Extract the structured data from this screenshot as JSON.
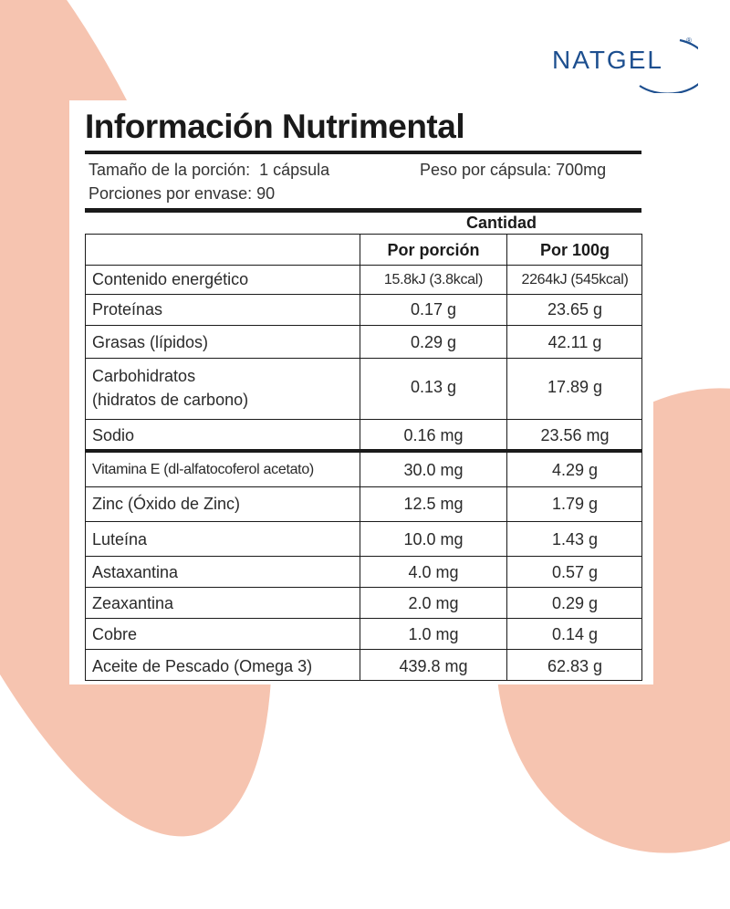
{
  "brand": {
    "name": "NATGEL",
    "reg": "®"
  },
  "title": "Información Nutrimental",
  "serving": {
    "size_label": "Tamaño de la porción:",
    "size_value": "1 cápsula",
    "weight_label": "Peso por cápsula:",
    "weight_value": "700mg",
    "servings_label": "Porciones por envase:",
    "servings_value": "90"
  },
  "table": {
    "group_header": "Cantidad",
    "col_per_serving": "Por porción",
    "col_per_100g": "Por 100g",
    "rows": [
      {
        "name": "Contenido energético",
        "per_serving": "15.8kJ (3.8kcal)",
        "per_100g": "2264kJ (545kcal)"
      },
      {
        "name": "Proteínas",
        "per_serving": "0.17 g",
        "per_100g": "23.65 g"
      },
      {
        "name": "Grasas (lípidos)",
        "per_serving": "0.29 g",
        "per_100g": "42.11 g"
      },
      {
        "name": "Carbohidratos",
        "name_line2": "(hidratos de carbono)",
        "per_serving": "0.13 g",
        "per_100g": "17.89 g"
      },
      {
        "name": "Sodio",
        "per_serving": "0.16 mg",
        "per_100g": "23.56 mg"
      },
      {
        "name": "Vitamina E (dl-alfatocoferol acetato)",
        "per_serving": "30.0 mg",
        "per_100g": "4.29 g"
      },
      {
        "name": "Zinc (Óxido de Zinc)",
        "per_serving": "12.5 mg",
        "per_100g": "1.79 g"
      },
      {
        "name": "Luteína",
        "per_serving": "10.0 mg",
        "per_100g": "1.43 g"
      },
      {
        "name": "Astaxantina",
        "per_serving": "4.0 mg",
        "per_100g": "0.57 g"
      },
      {
        "name": "Zeaxantina",
        "per_serving": "2.0 mg",
        "per_100g": "0.29 g"
      },
      {
        "name": "Cobre",
        "per_serving": "1.0 mg",
        "per_100g": "0.14 g"
      },
      {
        "name": "Aceite de Pescado (Omega 3)",
        "per_serving": "439.8 mg",
        "per_100g": "62.83 g"
      }
    ]
  },
  "colors": {
    "brand_blue": "#1d4f8f",
    "background_accent": "#f6c4b0",
    "text": "#1a1a1a"
  }
}
